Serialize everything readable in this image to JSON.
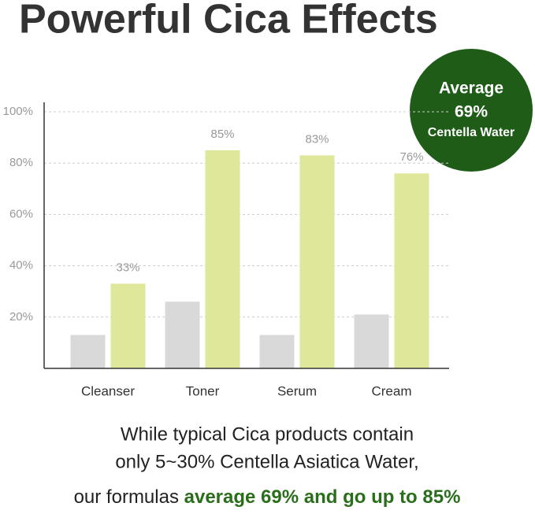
{
  "chart_data": {
    "type": "bar",
    "title": "Powerful Cica Effects",
    "categories": [
      "Cleanser",
      "Toner",
      "Serum",
      "Cream"
    ],
    "series": [
      {
        "color": "#d9d9d9",
        "values": [
          13,
          26,
          13,
          21
        ]
      },
      {
        "color": "#dfe79b",
        "values": [
          33,
          85,
          83,
          76
        ],
        "value_labels": [
          "33%",
          "85%",
          "83%",
          "76%"
        ]
      }
    ],
    "ylim": [
      0,
      100
    ],
    "yticks": [
      {
        "value": 20,
        "label": "20%"
      },
      {
        "value": 40,
        "label": "40%"
      },
      {
        "value": 60,
        "label": "60%"
      },
      {
        "value": 80,
        "label": "80%"
      },
      {
        "value": 100,
        "label": "100%"
      }
    ],
    "grid": true,
    "annotations": [
      "Average",
      "69%",
      "Centella Water"
    ]
  },
  "caption": {
    "lines": [
      "While typical Cica products contain",
      "only 5~30% Centella Asiatica Water,"
    ],
    "last_line": {
      "plain": "our formulas ",
      "highlight": "average 69% and go up to 85%"
    }
  }
}
